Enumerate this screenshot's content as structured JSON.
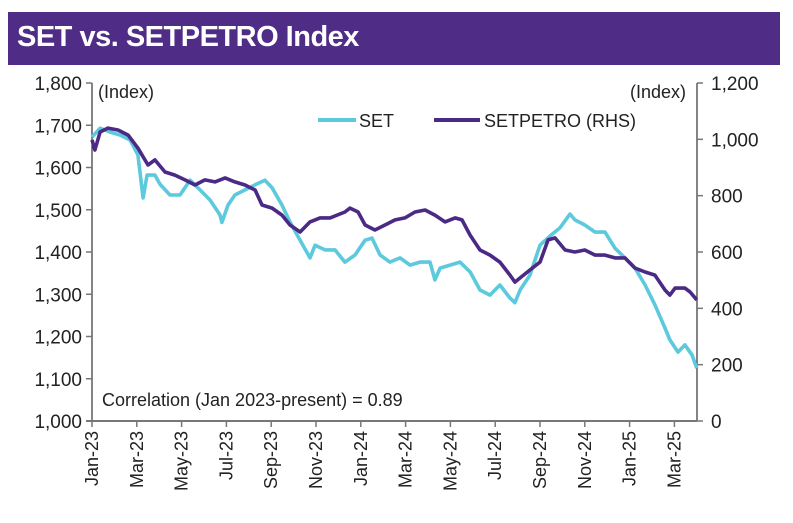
{
  "chart_data": {
    "type": "line",
    "title": "SET vs. SETPETRO Index",
    "x_unit": "months since Jan-2023",
    "x_tick_labels": [
      "Jan-23",
      "Mar-23",
      "May-23",
      "Jul-23",
      "Sep-23",
      "Nov-23",
      "Jan-24",
      "Mar-24",
      "May-24",
      "Jul-24",
      "Sep-24",
      "Nov-24",
      "Jan-25",
      "Mar-25"
    ],
    "x_tick_values": [
      0,
      2,
      4,
      6,
      8,
      10,
      12,
      14,
      16,
      18,
      20,
      22,
      24,
      26
    ],
    "xlim": [
      0,
      27
    ],
    "y_left": {
      "label": "(Index)",
      "range": [
        1000,
        1800
      ],
      "ticks": [
        1000,
        1100,
        1200,
        1300,
        1400,
        1500,
        1600,
        1700,
        1800
      ],
      "tick_labels": [
        "1,000",
        "1,100",
        "1,200",
        "1,300",
        "1,400",
        "1,500",
        "1,600",
        "1,700",
        "1,800"
      ]
    },
    "y_right": {
      "label": "(Index)",
      "range": [
        0,
        1200
      ],
      "ticks": [
        0,
        200,
        400,
        600,
        800,
        1000,
        1200
      ],
      "tick_labels": [
        "0",
        "200",
        "400",
        "600",
        "800",
        "1,000",
        "1,200"
      ]
    },
    "legend_position": "top-right",
    "annotation": "Correlation (Jan 2023-present) = 0.89",
    "grid": false,
    "series": [
      {
        "name": "SET",
        "axis": "left",
        "color": "#5cc9dd",
        "x": [
          0,
          0.36,
          0.8,
          1.25,
          1.7,
          2.05,
          2.28,
          2.46,
          2.81,
          3.04,
          3.48,
          3.93,
          4.38,
          4.82,
          5.27,
          5.71,
          5.8,
          6.07,
          6.38,
          6.83,
          7.28,
          7.72,
          8.04,
          8.48,
          8.84,
          9.29,
          9.73,
          9.96,
          10.4,
          10.85,
          11.29,
          11.74,
          12.19,
          12.5,
          12.86,
          13.3,
          13.75,
          14.2,
          14.64,
          15.09,
          15.31,
          15.54,
          15.98,
          16.43,
          16.88,
          17.32,
          17.77,
          18.21,
          18.66,
          18.88,
          19.11,
          19.55,
          20.0,
          20.45,
          20.89,
          21.34,
          21.56,
          22.0,
          22.46,
          22.9,
          23.35,
          23.79,
          24.24,
          24.69,
          25.13,
          25.58,
          25.8,
          26.16,
          26.47,
          26.79,
          27.0
        ],
        "values": [
          1672,
          1693,
          1684,
          1677,
          1665,
          1630,
          1528,
          1582,
          1582,
          1560,
          1535,
          1535,
          1570,
          1547,
          1523,
          1488,
          1470,
          1511,
          1535,
          1547,
          1559,
          1570,
          1552,
          1511,
          1471,
          1428,
          1386,
          1416,
          1405,
          1405,
          1376,
          1393,
          1428,
          1433,
          1393,
          1376,
          1386,
          1369,
          1376,
          1376,
          1334,
          1362,
          1369,
          1376,
          1353,
          1310,
          1298,
          1322,
          1291,
          1280,
          1310,
          1345,
          1416,
          1438,
          1457,
          1490,
          1476,
          1464,
          1447,
          1447,
          1409,
          1386,
          1362,
          1322,
          1275,
          1220,
          1192,
          1163,
          1180,
          1156,
          1125
        ]
      },
      {
        "name": "SETPETRO (RHS)",
        "axis": "right",
        "color": "#4b2a86",
        "x": [
          0,
          0.13,
          0.36,
          0.71,
          1.16,
          1.61,
          2.05,
          2.5,
          2.81,
          3.26,
          3.7,
          4.15,
          4.6,
          5.04,
          5.49,
          5.94,
          6.38,
          6.83,
          7.28,
          7.59,
          8.04,
          8.48,
          8.84,
          9.29,
          9.73,
          10.18,
          10.63,
          11.29,
          11.52,
          11.88,
          12.19,
          12.63,
          13.08,
          13.53,
          13.97,
          14.42,
          14.87,
          15.31,
          15.76,
          16.21,
          16.52,
          16.88,
          17.32,
          17.77,
          18.21,
          18.66,
          18.88,
          19.11,
          19.55,
          20.0,
          20.36,
          20.67,
          21.12,
          21.56,
          22.0,
          22.46,
          22.9,
          23.35,
          23.79,
          24.24,
          24.69,
          25.13,
          25.58,
          25.8,
          26.03,
          26.47,
          26.7,
          27.0
        ],
        "values": [
          998,
          962,
          1026,
          1040,
          1033,
          1015,
          969,
          909,
          927,
          884,
          873,
          856,
          838,
          856,
          849,
          863,
          849,
          838,
          820,
          767,
          756,
          731,
          696,
          671,
          707,
          721,
          721,
          742,
          756,
          742,
          696,
          678,
          696,
          714,
          721,
          742,
          749,
          731,
          707,
          721,
          714,
          660,
          607,
          589,
          564,
          518,
          493,
          508,
          536,
          564,
          643,
          650,
          607,
          600,
          607,
          589,
          589,
          579,
          579,
          543,
          529,
          518,
          465,
          447,
          472,
          472,
          458,
          430
        ]
      }
    ]
  }
}
